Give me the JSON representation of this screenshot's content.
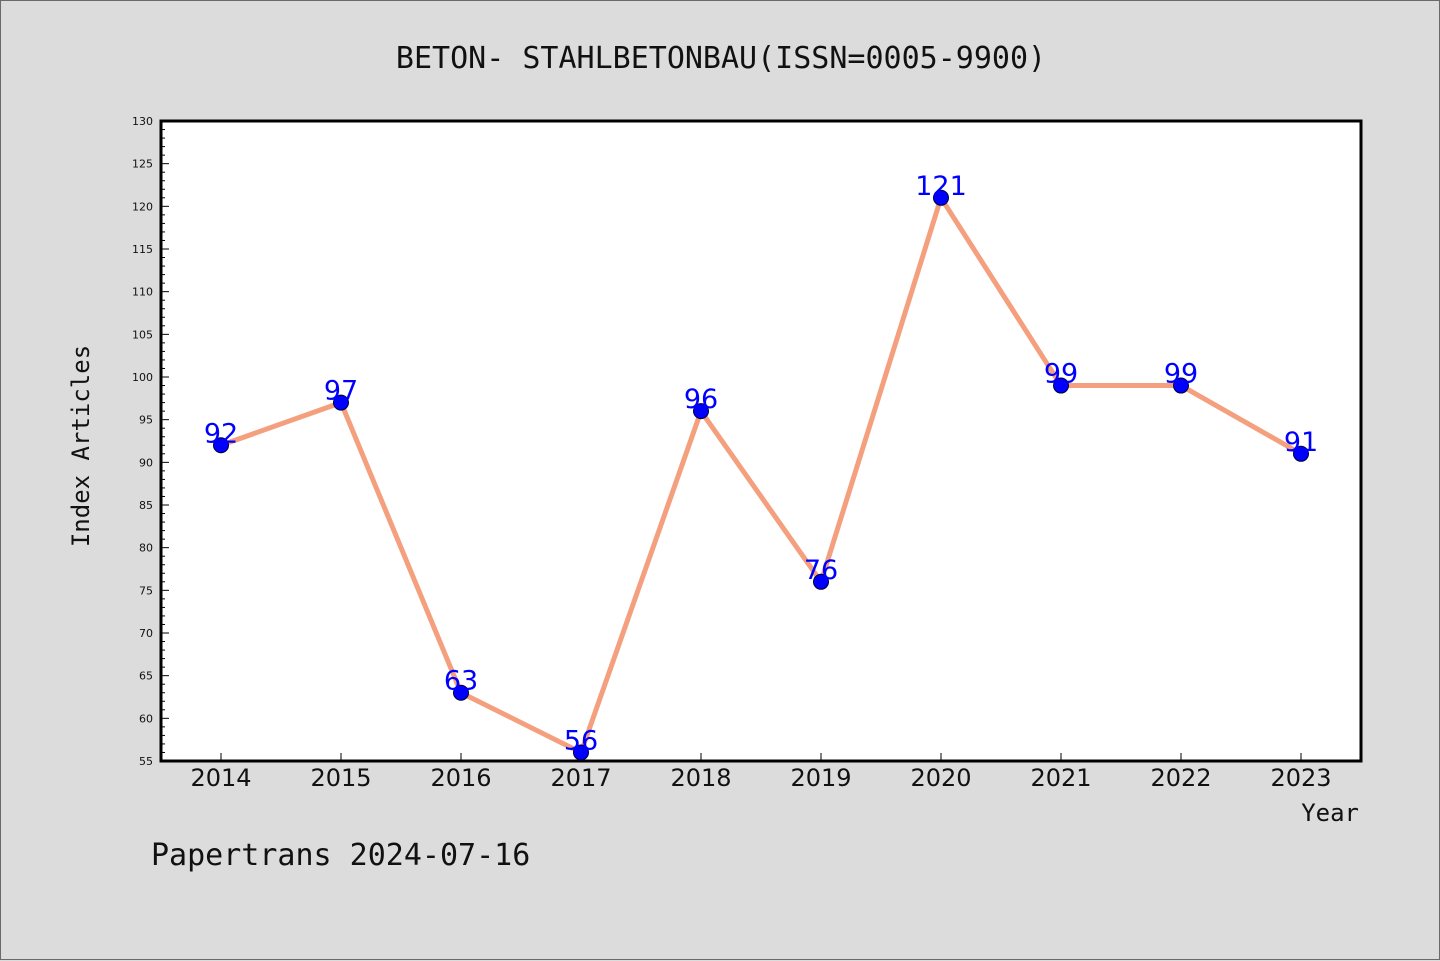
{
  "chart_data": {
    "type": "line",
    "title": "BETON- STAHLBETONBAU(ISSN=0005-9900)",
    "xlabel": "Year",
    "ylabel": "Index Articles",
    "categories": [
      "2014",
      "2015",
      "2016",
      "2017",
      "2018",
      "2019",
      "2020",
      "2021",
      "2022",
      "2023"
    ],
    "values": [
      92,
      97,
      63,
      56,
      96,
      76,
      121,
      99,
      99,
      91
    ],
    "ylim": [
      55,
      130
    ],
    "yticks": [
      55,
      60,
      65,
      70,
      75,
      80,
      85,
      90,
      95,
      100,
      105,
      110,
      115,
      120,
      125,
      130
    ],
    "grid": false,
    "line_color": "#f4a07e",
    "marker_color": "#0000ff",
    "label_color": "#0000ff"
  },
  "footer": "Papertrans 2024-07-16"
}
